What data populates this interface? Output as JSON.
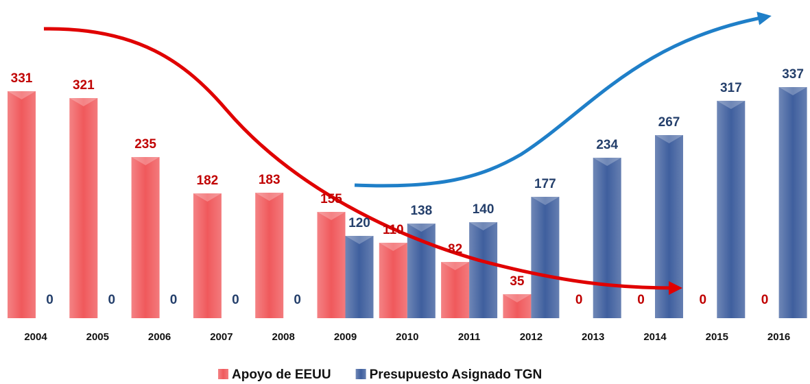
{
  "chart_data": {
    "type": "bar",
    "categories": [
      "2004",
      "2005",
      "2006",
      "2007",
      "2008",
      "2009",
      "2010",
      "2011",
      "2012",
      "2013",
      "2014",
      "2015",
      "2016"
    ],
    "series": [
      {
        "name": "Apoyo de EEUU",
        "color": "#f0595c",
        "label_color": "#c00000",
        "values": [
          331,
          321,
          235,
          182,
          183,
          155,
          110,
          82,
          35,
          0,
          0,
          0,
          0
        ]
      },
      {
        "name": "Presupuesto Asignado TGN",
        "color": "#3f5f9e",
        "label_color": "#243f6b",
        "values": [
          0,
          0,
          0,
          0,
          0,
          120,
          138,
          140,
          177,
          234,
          267,
          317,
          337
        ]
      }
    ],
    "legend": "bottom"
  }
}
